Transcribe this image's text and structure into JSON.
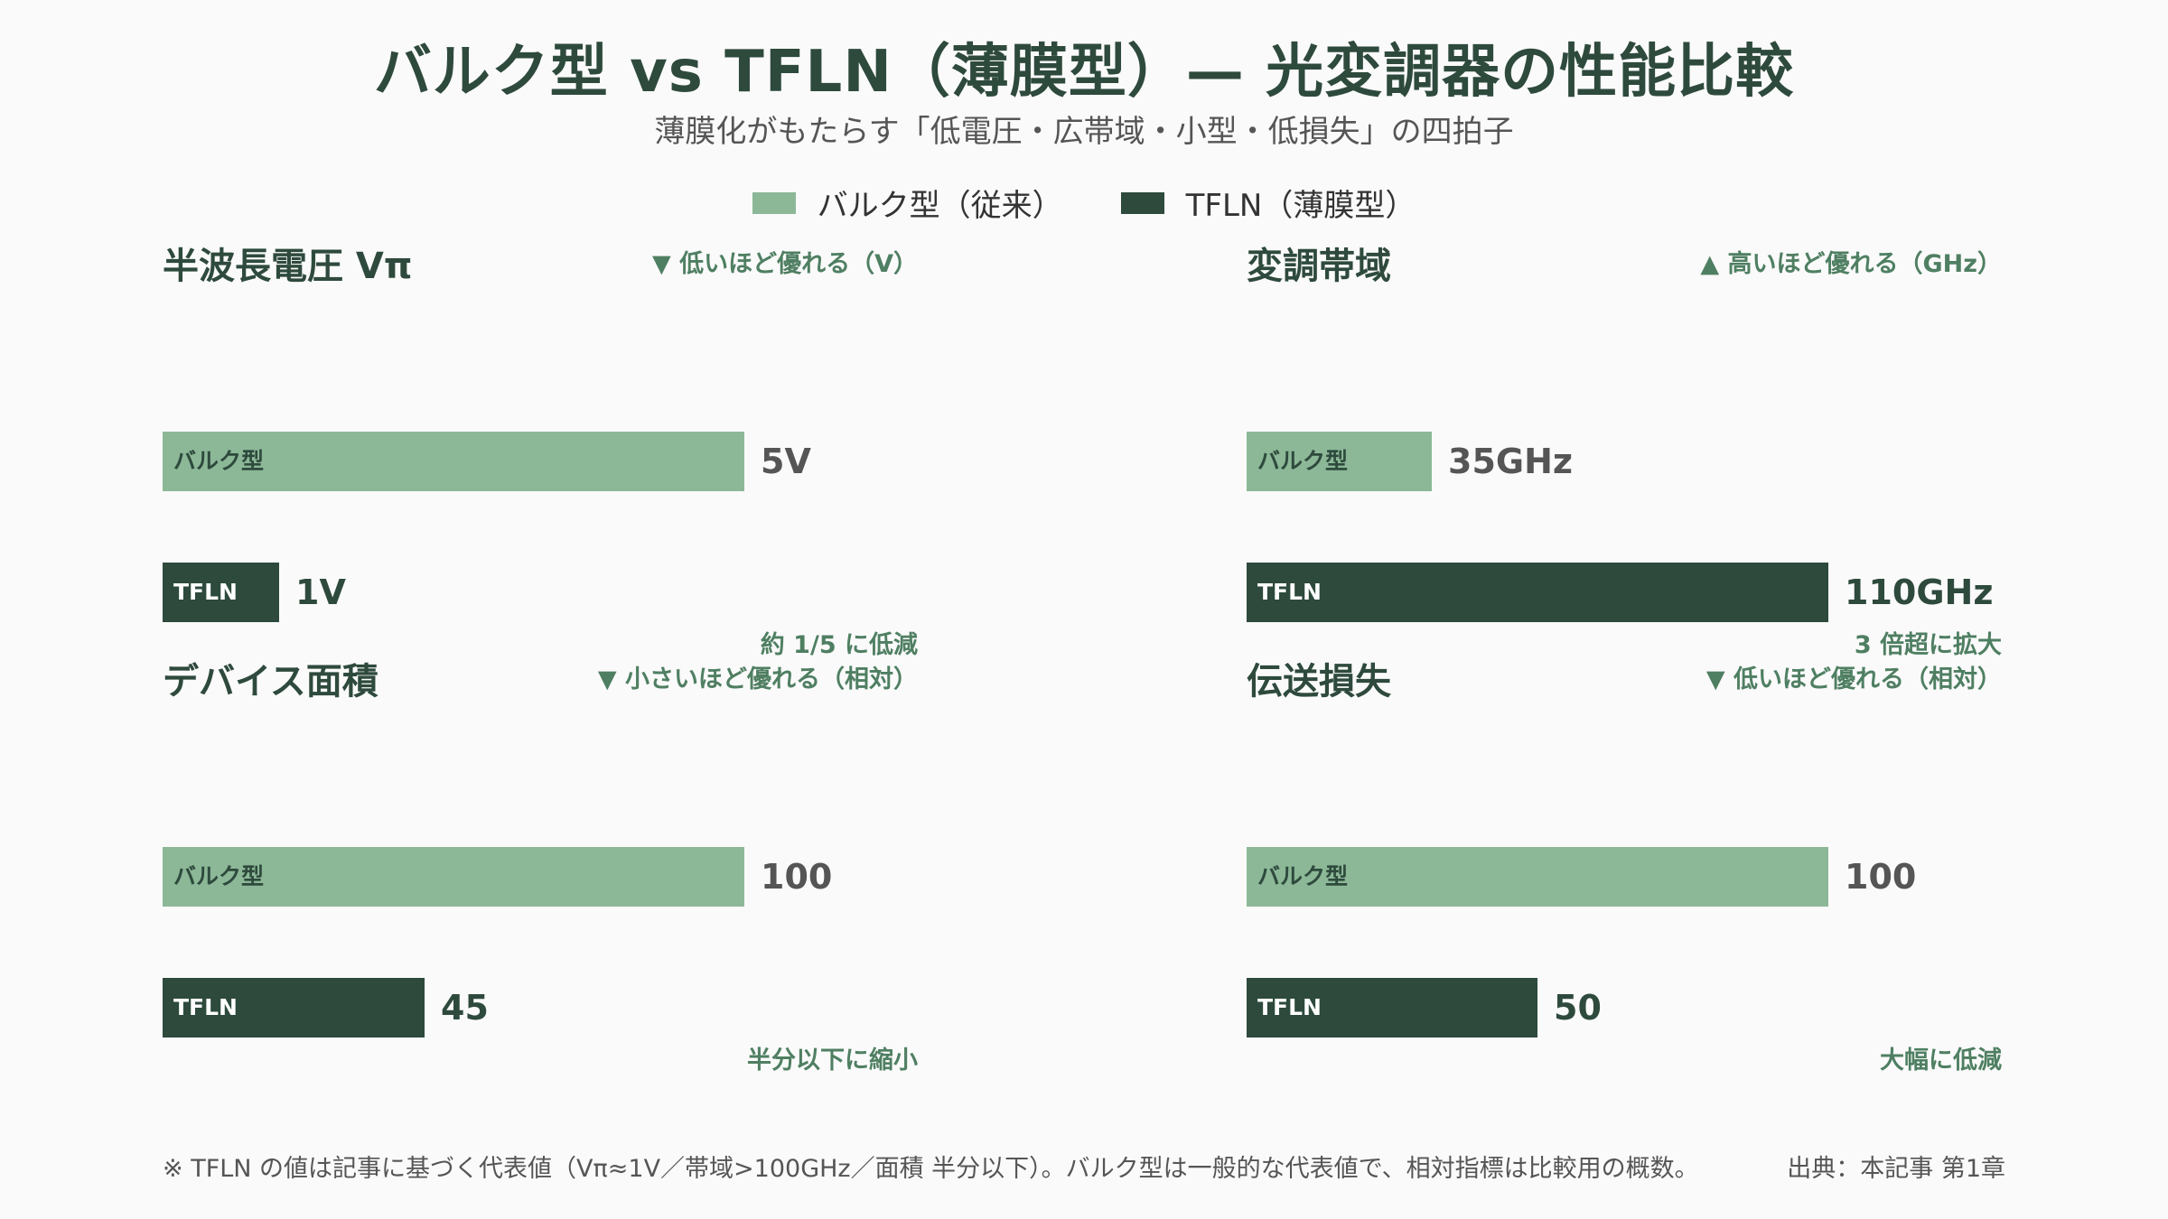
{
  "header": {
    "title": "バルク型 vs TFLN（薄膜型）— 光変調器の性能比較",
    "subtitle": "薄膜化がもたらす「低電圧・広帯域・小型・低損失」の四拍子"
  },
  "legend": [
    {
      "label": "バルク型（従来）",
      "color": "#8cb897"
    },
    {
      "label": "TFLN（薄膜型）",
      "color": "#2d4a3c"
    }
  ],
  "colors": {
    "bulk": "#8cb897",
    "tfln": "#2d4a3c",
    "accent_text": "#4f7f62"
  },
  "chart_data": [
    {
      "type": "bar",
      "title": "半波長電圧 Vπ",
      "hint": "▼ 低いほど優れる（V）",
      "note": "約 1/5 に低減",
      "xlim": [
        0,
        5
      ],
      "series": [
        {
          "name": "バルク型",
          "value": 5,
          "label": "5V"
        },
        {
          "name": "TFLN",
          "value": 1,
          "label": "1V"
        }
      ]
    },
    {
      "type": "bar",
      "title": "変調帯域",
      "hint": "▲ 高いほど優れる（GHz）",
      "note": "3 倍超に拡大",
      "xlim": [
        0,
        110
      ],
      "series": [
        {
          "name": "バルク型",
          "value": 35,
          "label": "35GHz"
        },
        {
          "name": "TFLN",
          "value": 110,
          "label": "110GHz"
        }
      ]
    },
    {
      "type": "bar",
      "title": "デバイス面積",
      "hint": "▼ 小さいほど優れる（相対）",
      "note": "半分以下に縮小",
      "xlim": [
        0,
        100
      ],
      "series": [
        {
          "name": "バルク型",
          "value": 100,
          "label": "100"
        },
        {
          "name": "TFLN",
          "value": 45,
          "label": "45"
        }
      ]
    },
    {
      "type": "bar",
      "title": "伝送損失",
      "hint": "▼ 低いほど優れる（相対）",
      "note": "大幅に低減",
      "xlim": [
        0,
        100
      ],
      "series": [
        {
          "name": "バルク型",
          "value": 100,
          "label": "100"
        },
        {
          "name": "TFLN",
          "value": 50,
          "label": "50"
        }
      ]
    }
  ],
  "footer": {
    "note": "※ TFLN の値は記事に基づく代表値（Vπ≈1V／帯域>100GHz／面積 半分以下）。バルク型は一般的な代表値で、相対指標は比較用の概数。",
    "source": "出典：本記事 第1章"
  }
}
